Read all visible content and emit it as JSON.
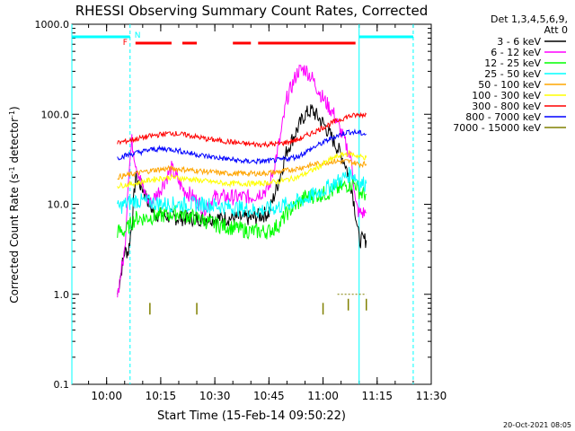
{
  "chart_data": {
    "type": "line",
    "title": "RHESSI Observing Summary Count Rates, Corrected",
    "ylabel": "Corrected Count Rate (s-1 detector-1)",
    "xlabel": "Start Time (15-Feb-14 09:50:22)",
    "yscale": "log",
    "ylim": [
      0.1,
      1000
    ],
    "xlim": [
      "09:50:22",
      "11:30:00"
    ],
    "yticks": [
      "0.1",
      "1.0",
      "10.0",
      "100.0",
      "1000.0"
    ],
    "xticks": [
      "10:00",
      "10:15",
      "10:30",
      "10:45",
      "11:00",
      "11:15",
      "11:30"
    ],
    "legend_header": [
      "Det 1,3,4,5,6,9,",
      "Att 0"
    ],
    "legend_position": "right",
    "timestamp": "20-Oct-2021 08:05",
    "flags": {
      "N_label": "N",
      "F_label": "F"
    },
    "series": [
      {
        "name": "3 - 6 keV",
        "color": "#000000",
        "x": [
          "10:03",
          "10:05",
          "10:06",
          "10:07",
          "10:08",
          "10:10",
          "10:13",
          "10:16",
          "10:20",
          "10:25",
          "10:30",
          "10:35",
          "10:40",
          "10:45",
          "10:48",
          "10:50",
          "10:53",
          "10:55",
          "10:57",
          "11:00",
          "11:03",
          "11:06",
          "11:08",
          "11:09",
          "11:10",
          "11:11",
          "11:12"
        ],
        "y": [
          1.0,
          3,
          3,
          6,
          20,
          15,
          8,
          7.5,
          7,
          7,
          7,
          7,
          7,
          8,
          20,
          40,
          70,
          100,
          110,
          80,
          50,
          30,
          15,
          8,
          4,
          4,
          4
        ]
      },
      {
        "name": "6 - 12 keV",
        "color": "#ff00ff",
        "x": [
          "10:03",
          "10:05",
          "10:06",
          "10:07",
          "10:08",
          "10:10",
          "10:12",
          "10:15",
          "10:18",
          "10:21",
          "10:24",
          "10:27",
          "10:30",
          "10:35",
          "10:40",
          "10:45",
          "10:48",
          "10:50",
          "10:53",
          "10:55",
          "10:57",
          "11:00",
          "11:03",
          "11:06",
          "11:08",
          "11:09",
          "11:10",
          "11:11",
          "11:12"
        ],
        "y": [
          1.0,
          3,
          20,
          50,
          30,
          15,
          10,
          15,
          25,
          15,
          12,
          9,
          12,
          12,
          12,
          15,
          50,
          150,
          300,
          320,
          250,
          150,
          100,
          50,
          30,
          10,
          8,
          8,
          8
        ]
      },
      {
        "name": "12 - 25 keV",
        "color": "#00ff00",
        "x": [
          "10:03",
          "10:05",
          "10:08",
          "10:10",
          "10:15",
          "10:20",
          "10:25",
          "10:30",
          "10:35",
          "10:40",
          "10:45",
          "10:48",
          "10:50",
          "10:55",
          "11:00",
          "11:03",
          "11:06",
          "11:08",
          "11:09",
          "11:10",
          "11:11",
          "11:12"
        ],
        "y": [
          5,
          5,
          7,
          7,
          7.5,
          8,
          7,
          6,
          5.5,
          5,
          5,
          6,
          8,
          12,
          13,
          14,
          16,
          17,
          17,
          14,
          13,
          13
        ]
      },
      {
        "name": "25 - 50 keV",
        "color": "#00ffff",
        "x": [
          "10:03",
          "10:05",
          "10:08",
          "10:12",
          "10:17",
          "10:22",
          "10:27",
          "10:32",
          "10:37",
          "10:42",
          "10:46",
          "10:50",
          "10:54",
          "10:58",
          "11:02",
          "11:06",
          "11:08",
          "11:09",
          "11:10",
          "11:11",
          "11:12"
        ],
        "y": [
          9,
          10,
          11,
          10.5,
          10,
          10,
          10,
          9.5,
          9,
          8.5,
          9,
          10,
          11,
          13,
          16,
          20,
          22,
          20,
          17,
          17,
          17
        ]
      },
      {
        "name": "50 - 100 keV",
        "color": "#ffa500",
        "x": [
          "10:03",
          "10:08",
          "10:13",
          "10:18",
          "10:23",
          "10:28",
          "10:33",
          "10:38",
          "10:43",
          "10:48",
          "10:53",
          "10:58",
          "11:03",
          "11:07",
          "11:10",
          "11:12"
        ],
        "y": [
          20,
          22,
          24,
          25,
          24,
          23,
          22,
          22,
          22,
          23,
          25,
          28,
          30,
          30,
          28,
          28
        ]
      },
      {
        "name": "100 - 300 keV",
        "color": "#ffff00",
        "x": [
          "10:03",
          "10:08",
          "10:13",
          "10:18",
          "10:23",
          "10:28",
          "10:33",
          "10:38",
          "10:43",
          "10:48",
          "10:53",
          "10:58",
          "11:03",
          "11:07",
          "11:10",
          "11:12"
        ],
        "y": [
          16,
          17,
          19,
          20,
          19,
          18,
          17,
          17,
          17,
          18,
          20,
          25,
          33,
          37,
          34,
          33
        ]
      },
      {
        "name": "300 - 800 keV",
        "color": "#ff0000",
        "x": [
          "10:03",
          "10:08",
          "10:13",
          "10:18",
          "10:23",
          "10:28",
          "10:33",
          "10:38",
          "10:43",
          "10:48",
          "10:53",
          "10:58",
          "11:03",
          "11:07",
          "11:10",
          "11:12"
        ],
        "y": [
          48,
          53,
          58,
          62,
          58,
          53,
          50,
          47,
          46,
          47,
          52,
          65,
          82,
          95,
          98,
          100
        ]
      },
      {
        "name": "800 - 7000 keV",
        "color": "#0000ff",
        "x": [
          "10:03",
          "10:08",
          "10:13",
          "10:18",
          "10:23",
          "10:28",
          "10:33",
          "10:38",
          "10:43",
          "10:48",
          "10:53",
          "10:58",
          "11:03",
          "11:07",
          "11:10",
          "11:12"
        ],
        "y": [
          33,
          37,
          41,
          41,
          37,
          34,
          32,
          30,
          30,
          31,
          34,
          44,
          56,
          64,
          62,
          60
        ]
      },
      {
        "name": "7000 - 15000 keV",
        "color": "#808000",
        "x": [
          "10:12",
          "10:25",
          "11:00",
          "11:07",
          "11:12"
        ],
        "y": [
          0.9,
          0.9,
          0.9,
          1.0,
          1.0
        ]
      }
    ]
  }
}
